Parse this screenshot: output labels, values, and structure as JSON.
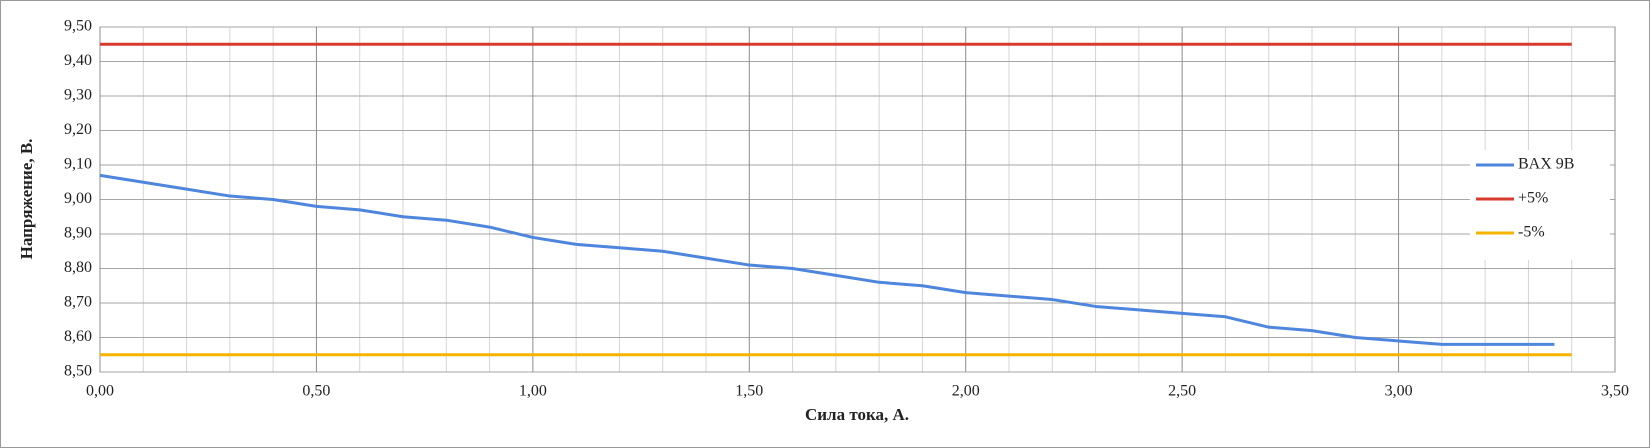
{
  "chart_data": {
    "type": "line",
    "x_label": "Сила тока, А.",
    "y_label": "Напряжение, В.",
    "xlim": [
      0,
      3.5
    ],
    "xticks": [
      {
        "value": 0,
        "label": "0,00"
      },
      {
        "value": 0.5,
        "label": "0,50"
      },
      {
        "value": 1,
        "label": "1,00"
      },
      {
        "value": 1.5,
        "label": "1,50"
      },
      {
        "value": 2,
        "label": "2,00"
      },
      {
        "value": 2.5,
        "label": "2,50"
      },
      {
        "value": 3,
        "label": "3,00"
      },
      {
        "value": 3.5,
        "label": "3,50"
      }
    ],
    "ylim": [
      8.5,
      9.5
    ],
    "yticks": [
      {
        "value": 8.5,
        "label": "8,50"
      },
      {
        "value": 8.6,
        "label": "8,60"
      },
      {
        "value": 8.7,
        "label": "8,70"
      },
      {
        "value": 8.8,
        "label": "8,80"
      },
      {
        "value": 8.9,
        "label": "8,90"
      },
      {
        "value": 9,
        "label": "9,00"
      },
      {
        "value": 9.1,
        "label": "9,10"
      },
      {
        "value": 9.2,
        "label": "9,20"
      },
      {
        "value": 9.3,
        "label": "9,30"
      },
      {
        "value": 9.4,
        "label": "9,40"
      },
      {
        "value": 9.5,
        "label": "9,50"
      }
    ],
    "grid": true,
    "legend": "right",
    "series": [
      {
        "name": "BAX 9B",
        "color": "#4f86dd",
        "x": [
          0,
          0.1,
          0.2,
          0.3,
          0.4,
          0.5,
          0.6,
          0.7,
          0.8,
          0.9,
          1.0,
          1.1,
          1.2,
          1.3,
          1.4,
          1.5,
          1.6,
          1.7,
          1.8,
          1.9,
          2.0,
          2.1,
          2.2,
          2.3,
          2.4,
          2.5,
          2.6,
          2.7,
          2.8,
          2.9,
          3.0,
          3.1,
          3.2,
          3.3,
          3.36
        ],
        "values": [
          9.07,
          9.05,
          9.03,
          9.01,
          9.0,
          8.98,
          8.97,
          8.95,
          8.94,
          8.92,
          8.89,
          8.87,
          8.86,
          8.85,
          8.83,
          8.81,
          8.8,
          8.78,
          8.76,
          8.75,
          8.73,
          8.72,
          8.71,
          8.69,
          8.68,
          8.67,
          8.66,
          8.63,
          8.62,
          8.6,
          8.59,
          8.58,
          8.58,
          8.58,
          8.58
        ]
      },
      {
        "name": "+5%",
        "color": "#d83a2e",
        "x": [
          0,
          3.4
        ],
        "values": [
          9.45,
          9.45
        ]
      },
      {
        "name": "-5%",
        "color": "#f5b400",
        "x": [
          0,
          3.4
        ],
        "values": [
          8.55,
          8.55
        ]
      }
    ]
  }
}
